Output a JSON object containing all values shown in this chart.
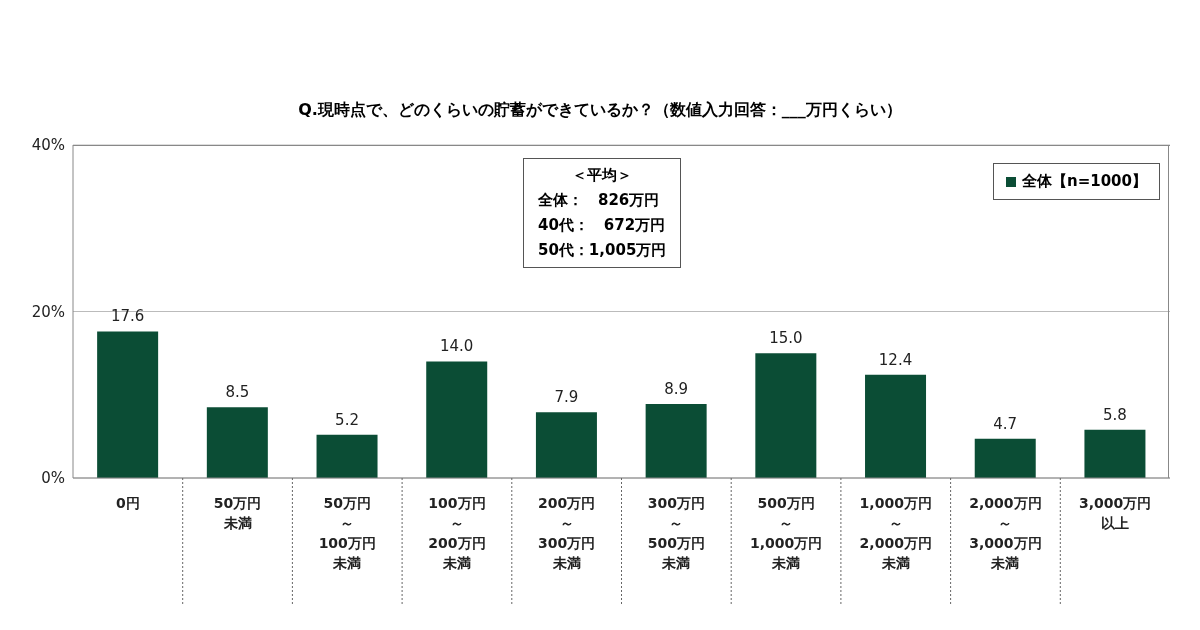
{
  "chart_data": {
    "type": "bar",
    "title": "Q.現時点で、どのくらいの貯蓄ができているか？（数値入力回答：___万円くらい）",
    "categories": [
      "0円",
      "50万円未満",
      "50万円～100万円未満",
      "100万円～200万円未満",
      "200万円～300万円未満",
      "300万円～500万円未満",
      "500万円～1,000万円未満",
      "1,000万円～2,000万円未満",
      "2,000万円～3,000万円未満",
      "3,000万円以上"
    ],
    "series": [
      {
        "name": "全体【n=1000】",
        "color": "#0b4d35",
        "values": [
          17.6,
          8.5,
          5.2,
          14.0,
          7.9,
          8.9,
          15.0,
          12.4,
          4.7,
          5.8
        ],
        "value_labels": [
          "17.6",
          "8.5",
          "5.2",
          "14.0",
          "7.9",
          "8.9",
          "15.0",
          "12.4",
          "4.7",
          "5.8"
        ]
      }
    ],
    "ylim": [
      0,
      40
    ],
    "yticks": [
      {
        "value": 0,
        "label": "0%"
      },
      {
        "value": 20,
        "label": "20%"
      },
      {
        "value": 40,
        "label": "40%"
      }
    ],
    "grid": "y",
    "legend": "top right",
    "annotations": [
      "＜平均＞",
      "全体：　826万円",
      "40代：　672万円",
      "50代：1,005万円"
    ]
  }
}
